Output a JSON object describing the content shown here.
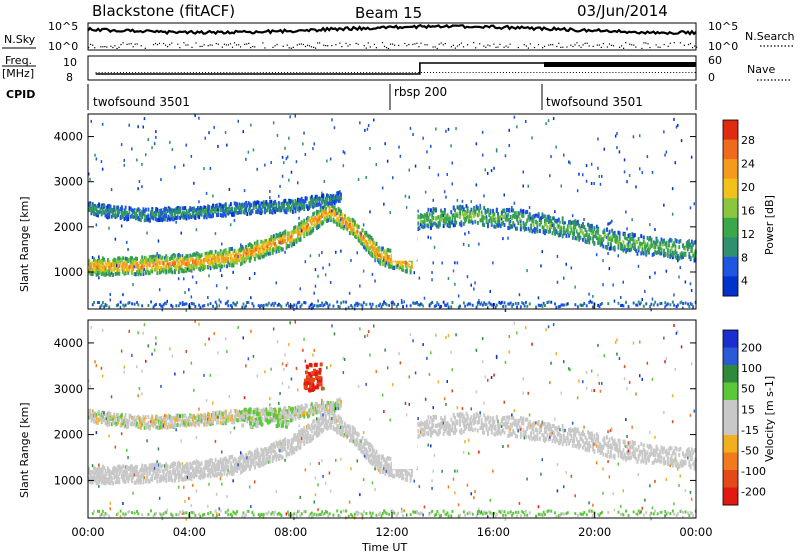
{
  "header": {
    "title": "Blackstone (fitACF)",
    "beam": "Beam 15",
    "date": "03/Jun/2014"
  },
  "top_panels": {
    "nsky_label": "N.Sky",
    "nsearch_label": "N.Search",
    "noise_ticks": [
      "10^5",
      "10^0"
    ],
    "noise_right_ticks": [
      "10^5",
      "10^0"
    ],
    "freq_label_1": "Freq.",
    "freq_label_2": "[MHz]",
    "freq_ticks": [
      "10",
      "8"
    ],
    "nave_label": "Nave",
    "nave_ticks": [
      "60",
      "0"
    ],
    "cpid_label": "CPID",
    "cpid_segments": [
      {
        "name": "twofsound 3501",
        "start_hour": 0,
        "end_hour": 12.0
      },
      {
        "name": "rbsp 200",
        "start_hour": 12.0,
        "end_hour": 18.0
      },
      {
        "name": "twofsound 3501",
        "start_hour": 18.0,
        "end_hour": 24
      }
    ]
  },
  "colors": {
    "power_scale": [
      "#0033cc",
      "#1f55e0",
      "#2f8f6e",
      "#3aa84a",
      "#8cc63e",
      "#f2c21a",
      "#f59a1c",
      "#ef6a1a",
      "#e02a12"
    ],
    "velocity_scale": [
      "#1b2fd0",
      "#2a5ad6",
      "#2f8b3a",
      "#5bc83a",
      "#c8c8c8",
      "#c8c8c8",
      "#f2b020",
      "#f07a1c",
      "#e44a18",
      "#e01a10"
    ]
  },
  "chart_data": [
    {
      "type": "heatmap",
      "title": "",
      "xlabel": "Time UT",
      "ylabel": "Slant Range [km]",
      "xlim_hours": [
        0,
        24
      ],
      "x_ticks": [
        "00:00",
        "04:00",
        "08:00",
        "12:00",
        "16:00",
        "20:00",
        "00:00"
      ],
      "ylim": [
        180,
        4500
      ],
      "y_ticks": [
        1000,
        2000,
        3000,
        4000
      ],
      "colorbar_label": "Power [dB]",
      "colorbar_ticks": [
        "28",
        "24",
        "20",
        "16",
        "12",
        "8",
        "4"
      ],
      "colorbar_range": [
        0,
        30
      ],
      "echo_bands": [
        {
          "description": "main scatter band",
          "time_hours": [
            0,
            2,
            4,
            6,
            8,
            9.5,
            10.5,
            11.5,
            12.8
          ],
          "range_km": [
            1150,
            1180,
            1250,
            1400,
            1800,
            2400,
            2000,
            1400,
            1200
          ],
          "power_db": 24
        },
        {
          "description": "upper band",
          "time_hours": [
            0,
            2,
            4,
            6,
            8,
            10
          ],
          "range_km": [
            2450,
            2300,
            2350,
            2450,
            2500,
            2700
          ],
          "power_db": 10
        },
        {
          "description": "post-13UT band",
          "time_hours": [
            13,
            15,
            17,
            19,
            21,
            24
          ],
          "range_km": [
            2200,
            2300,
            2200,
            2000,
            1700,
            1500
          ],
          "power_db": 14
        }
      ]
    },
    {
      "type": "heatmap",
      "title": "",
      "xlabel": "Time UT",
      "ylabel": "Slant Range [km]",
      "xlim_hours": [
        0,
        24
      ],
      "x_ticks": [
        "00:00",
        "04:00",
        "08:00",
        "12:00",
        "16:00",
        "20:00",
        "00:00"
      ],
      "ylim": [
        180,
        4500
      ],
      "y_ticks": [
        1000,
        2000,
        3000,
        4000
      ],
      "colorbar_label": "Velocity [m s-1]",
      "colorbar_ticks": [
        "200",
        "100",
        "50",
        "15",
        "-15",
        "-50",
        "-100",
        "-200"
      ],
      "colorbar_range": [
        -250,
        250
      ],
      "echo_bands": [
        {
          "description": "ground scatter",
          "velocity_ms": 0
        },
        {
          "description": "ionospheric patch near 08:00",
          "time_hours": [
            6,
            8
          ],
          "range_km": [
            2200,
            2600
          ],
          "velocity_ms": 60
        },
        {
          "description": "high velocity echoes near 09:00",
          "time_hours": [
            8.5,
            9.2
          ],
          "range_km": [
            3000,
            3600
          ],
          "velocity_ms": -200
        }
      ]
    }
  ]
}
